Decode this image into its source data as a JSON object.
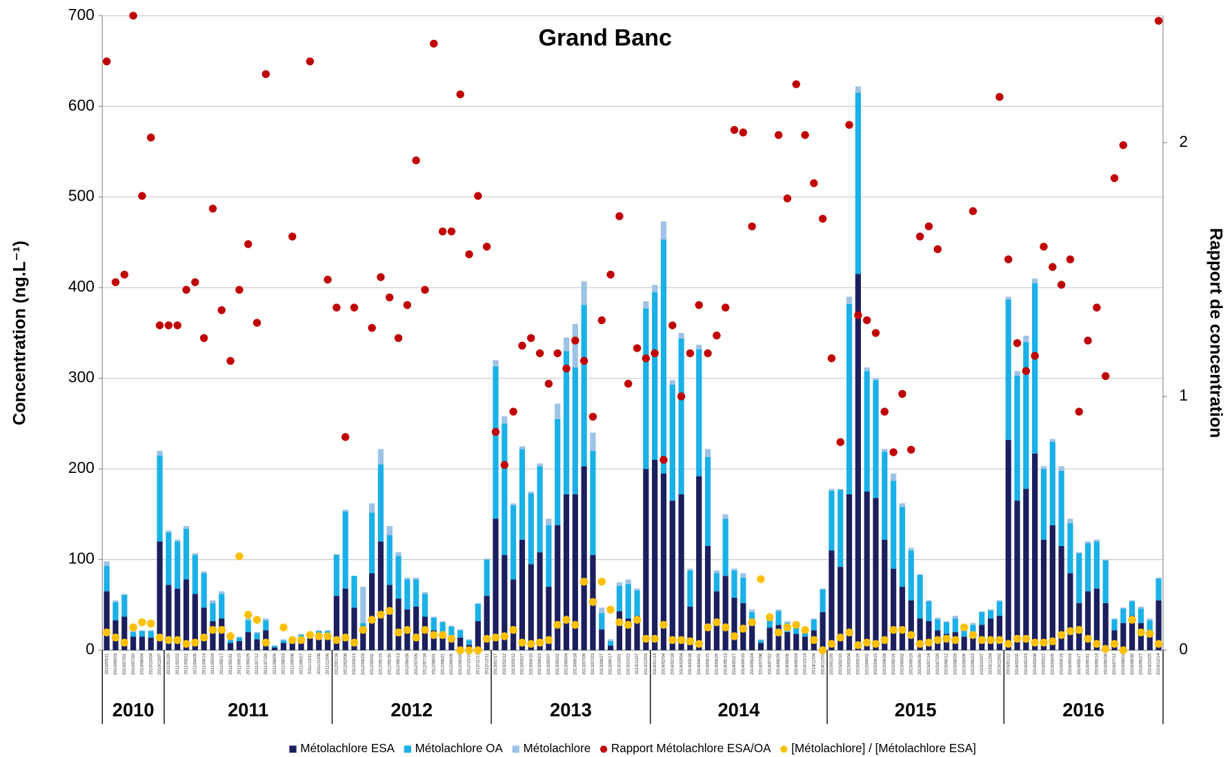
{
  "chart_data": {
    "type": "bar",
    "title": "Grand Banc",
    "y_label": "Concentration (ng.L⁻¹)",
    "y2_label": "Rapport de concentration",
    "categories": [
      "2010/05/11",
      "2010/06/03",
      "2010/07/01",
      "2010/07/20",
      "2010/08/04",
      "2010/10/04",
      "2010/12/07",
      "2011/01/20",
      "2011/02/22",
      "2011/03/22",
      "2011/04/05",
      "2011/04/14",
      "2011/05/03",
      "2011/05/17",
      "2011/05/31",
      "2011/06/15",
      "2011/06/29",
      "2011/07/12",
      "2011/07/26",
      "2011/08/09",
      "2011/08/23",
      "2011/09/08",
      "2011/09/27",
      "2011/10/11",
      "2011/11/08",
      "2011/12/06",
      "2012/01/18",
      "2012/02/08",
      "2012/03/13",
      "2012/04/26",
      "2012/05/02",
      "2012/05/15",
      "2012/05/30",
      "2012/06/13",
      "2012/06/28",
      "2012/07/05",
      "2012/07/18",
      "2012/08/01",
      "2012/08/21",
      "2012/09/05",
      "2012/09/26",
      "2012/10/16",
      "2012/11/13",
      "2012/12/11",
      "2013/01/17",
      "2013/02/12",
      "2013/03/12",
      "2013/03/27",
      "2013/04/10",
      "2013/04/23",
      "2013/05/07",
      "2013/05/22",
      "2013/06/04",
      "2013/06/18",
      "2013/07/09",
      "2013/07/23",
      "2013/08/27",
      "2013/09/17",
      "2013/10/01",
      "2013/10/22",
      "2013/11/07",
      "2013/12/03",
      "2014/01/14",
      "2014/02/04",
      "2014/02/18",
      "2014/03/04",
      "2014/03/18",
      "2014/04/01",
      "2014/04/15",
      "2014/04/29",
      "2014/05/13",
      "2014/05/27",
      "2014/06/10",
      "2014/06/24",
      "2014/07/08",
      "2014/07/22",
      "2014/08/26",
      "2014/09/09",
      "2014/09/24",
      "2014/10/14",
      "2014/11/04",
      "2014/12/03",
      "2015/01/20",
      "2015/02/10",
      "2015/03/04",
      "2015/03/19",
      "2015/04/02",
      "2015/04/15",
      "2015/04/28",
      "2015/05/19",
      "2015/06/02",
      "2015/06/16",
      "2015/06/30",
      "2015/07/14",
      "2015/07/29",
      "2015/08/12",
      "2015/08/26",
      "2015/09/09",
      "2015/09/23",
      "2015/10/07",
      "2015/11/04",
      "2015/12/02",
      "2016/01/12",
      "2016/02/02",
      "2016/02/23",
      "2016/03/08",
      "2016/03/22",
      "2016/04/05",
      "2016/04/19",
      "2016/05/03",
      "2016/05/17",
      "2016/05/31",
      "2016/06/14",
      "2016/06/28",
      "2016/07/12",
      "2016/08/02",
      "2016/08/30",
      "2016/09/27",
      "2016/10/25",
      "2016/12/14"
    ],
    "years": [
      "2010",
      "2011",
      "2012",
      "2013",
      "2014",
      "2015",
      "2016"
    ],
    "series": [
      {
        "name": "Métolachlore ESA",
        "type": "bar",
        "color": "#1b1f5e",
        "values": [
          65,
          33,
          37,
          15,
          15,
          14,
          120,
          72,
          68,
          78,
          62,
          47,
          32,
          35,
          8,
          10,
          20,
          12,
          22,
          3,
          8,
          10,
          12,
          13,
          14,
          13,
          60,
          68,
          47,
          20,
          85,
          120,
          72,
          57,
          45,
          48,
          37,
          22,
          18,
          16,
          14,
          6,
          32,
          60,
          145,
          105,
          78,
          122,
          95,
          108,
          70,
          138,
          172,
          172,
          203,
          105,
          23,
          5,
          43,
          35,
          38,
          200,
          210,
          195,
          165,
          172,
          48,
          192,
          115,
          65,
          82,
          58,
          52,
          30,
          8,
          25,
          28,
          20,
          18,
          15,
          22,
          42,
          110,
          92,
          172,
          415,
          175,
          168,
          122,
          90,
          70,
          55,
          35,
          32,
          22,
          18,
          20,
          15,
          16,
          28,
          35,
          38,
          232,
          165,
          178,
          217,
          122,
          138,
          115,
          85,
          52,
          65,
          68,
          52,
          22,
          30,
          38,
          30,
          18,
          55
        ]
      },
      {
        "name": "Métolachlore OA",
        "type": "bar",
        "color": "#1ab0e8",
        "values": [
          28,
          20,
          24,
          5,
          6,
          7,
          95,
          58,
          52,
          56,
          43,
          38,
          20,
          27,
          3,
          4,
          13,
          7,
          11,
          2,
          3,
          4,
          5,
          6,
          7,
          8,
          45,
          85,
          35,
          10,
          67,
          85,
          55,
          47,
          33,
          30,
          25,
          14,
          13,
          10,
          8,
          5,
          19,
          40,
          168,
          145,
          82,
          100,
          78,
          95,
          68,
          117,
          158,
          140,
          178,
          115,
          18,
          5,
          28,
          38,
          28,
          177,
          185,
          258,
          128,
          172,
          40,
          140,
          98,
          20,
          63,
          30,
          28,
          12,
          3,
          12,
          15,
          10,
          10,
          8,
          12,
          25,
          66,
          85,
          210,
          200,
          133,
          130,
          97,
          97,
          88,
          55,
          48,
          22,
          12,
          13,
          15,
          12,
          12,
          14,
          9,
          16,
          155,
          138,
          162,
          188,
          78,
          92,
          83,
          55,
          55,
          53,
          52,
          47,
          12,
          16,
          16,
          16,
          15,
          24
        ]
      },
      {
        "name": "Métolachlore",
        "type": "bar",
        "color": "#9dc3e6",
        "values": [
          5,
          2,
          1,
          2,
          1,
          1,
          5,
          2,
          2,
          3,
          2,
          2,
          3,
          3,
          1,
          1,
          2,
          1,
          2,
          0,
          1,
          1,
          1,
          1,
          1,
          1,
          1,
          2,
          0,
          40,
          10,
          17,
          10,
          4,
          2,
          2,
          2,
          1,
          1,
          1,
          1,
          1,
          1,
          1,
          7,
          8,
          2,
          3,
          2,
          3,
          7,
          17,
          15,
          48,
          26,
          20,
          6,
          2,
          4,
          5,
          2,
          8,
          8,
          20,
          5,
          6,
          2,
          5,
          9,
          3,
          5,
          2,
          5,
          3,
          1,
          1,
          2,
          2,
          2,
          2,
          1,
          1,
          2,
          1,
          8,
          7,
          4,
          2,
          3,
          8,
          4,
          3,
          1,
          1,
          2,
          1,
          3,
          1,
          2,
          1,
          1,
          1,
          3,
          5,
          7,
          5,
          3,
          3,
          5,
          5,
          1,
          2,
          2,
          1,
          1,
          1,
          1,
          2,
          2,
          1
        ]
      },
      {
        "name": "Rapport Métolachlore ESA/OA",
        "type": "scatter",
        "axis": "y2",
        "color": "#c00000",
        "values": [
          2.32,
          1.45,
          1.48,
          2.5,
          1.79,
          2.02,
          1.28,
          1.28,
          1.28,
          1.42,
          1.45,
          1.23,
          1.74,
          1.34,
          1.14,
          1.42,
          1.6,
          1.29,
          2.27,
          null,
          null,
          1.63,
          null,
          2.32,
          null,
          1.46,
          1.35,
          0.84,
          1.35,
          0.08,
          1.27,
          1.47,
          1.39,
          1.23,
          1.36,
          1.93,
          1.42,
          2.39,
          1.65,
          1.65,
          2.19,
          1.56,
          1.79,
          1.59,
          0.86,
          0.73,
          0.94,
          1.2,
          1.23,
          1.17,
          1.05,
          1.17,
          1.11,
          1.22,
          1.14,
          0.92,
          1.3,
          1.48,
          1.71,
          1.05,
          1.19,
          1.15,
          1.17,
          0.75,
          1.28,
          1.0,
          1.17,
          1.36,
          1.17,
          1.24,
          1.35,
          2.05,
          2.04,
          1.67,
          null,
          null,
          2.03,
          1.78,
          2.23,
          2.03,
          1.84,
          1.7,
          1.15,
          0.82,
          2.07,
          1.32,
          1.3,
          1.25,
          0.94,
          0.78,
          1.01,
          0.79,
          1.63,
          1.67,
          1.58,
          null,
          null,
          null,
          1.73,
          null,
          null,
          2.18,
          1.54,
          1.21,
          1.1,
          1.16,
          1.59,
          1.51,
          1.44,
          1.54,
          0.94,
          1.22,
          1.35,
          1.08,
          1.86,
          1.99,
          null,
          null,
          null,
          2.48
        ]
      },
      {
        "name": "[Métolachlore] / [Métolachlore ESA]",
        "type": "scatter",
        "axis": "y2",
        "color": "#ffc000",
        "values": [
          0.07,
          0.05,
          0.03,
          0.09,
          0.11,
          0.105,
          0.05,
          0.04,
          0.04,
          0.025,
          0.03,
          0.05,
          0.08,
          0.08,
          0.055,
          0.37,
          0.14,
          0.12,
          0.03,
          null,
          0.09,
          0.04,
          0.04,
          0.06,
          0.055,
          0.055,
          0.04,
          0.05,
          0.03,
          0.08,
          0.12,
          0.14,
          0.155,
          0.07,
          0.08,
          0.05,
          0.08,
          0.06,
          0.06,
          0.045,
          0,
          0,
          0,
          0.045,
          0.05,
          0.055,
          0.08,
          0.03,
          0.025,
          0.03,
          0.04,
          0.1,
          0.12,
          0.1,
          0.27,
          0.19,
          0.27,
          0.16,
          0.11,
          0.1,
          0.12,
          0.045,
          0.045,
          0.1,
          0.04,
          0.04,
          0.035,
          0.025,
          0.09,
          0.11,
          0.09,
          0.055,
          0.085,
          0.11,
          0.28,
          0.13,
          0.07,
          0.09,
          0.1,
          0.08,
          0.04,
          0,
          0.025,
          0.05,
          0.07,
          0.02,
          0.03,
          0.025,
          0.04,
          0.08,
          0.08,
          0.06,
          0.025,
          0.03,
          0.04,
          0.045,
          0.04,
          0.09,
          0.06,
          0.04,
          0.04,
          0.04,
          0.025,
          0.045,
          0.045,
          0.03,
          0.03,
          0.035,
          0.06,
          0.075,
          0.08,
          0.045,
          0.025,
          0.005,
          0.025,
          0,
          0.12,
          0.07,
          0.065,
          0.025
        ]
      }
    ],
    "ylim": [
      0,
      700
    ],
    "yticks": [
      0,
      100,
      200,
      300,
      400,
      500,
      600,
      700
    ],
    "y2lim": [
      0,
      2.5
    ],
    "y2ticks": [
      0,
      1,
      2
    ],
    "grid": true,
    "legend": "bottom"
  }
}
